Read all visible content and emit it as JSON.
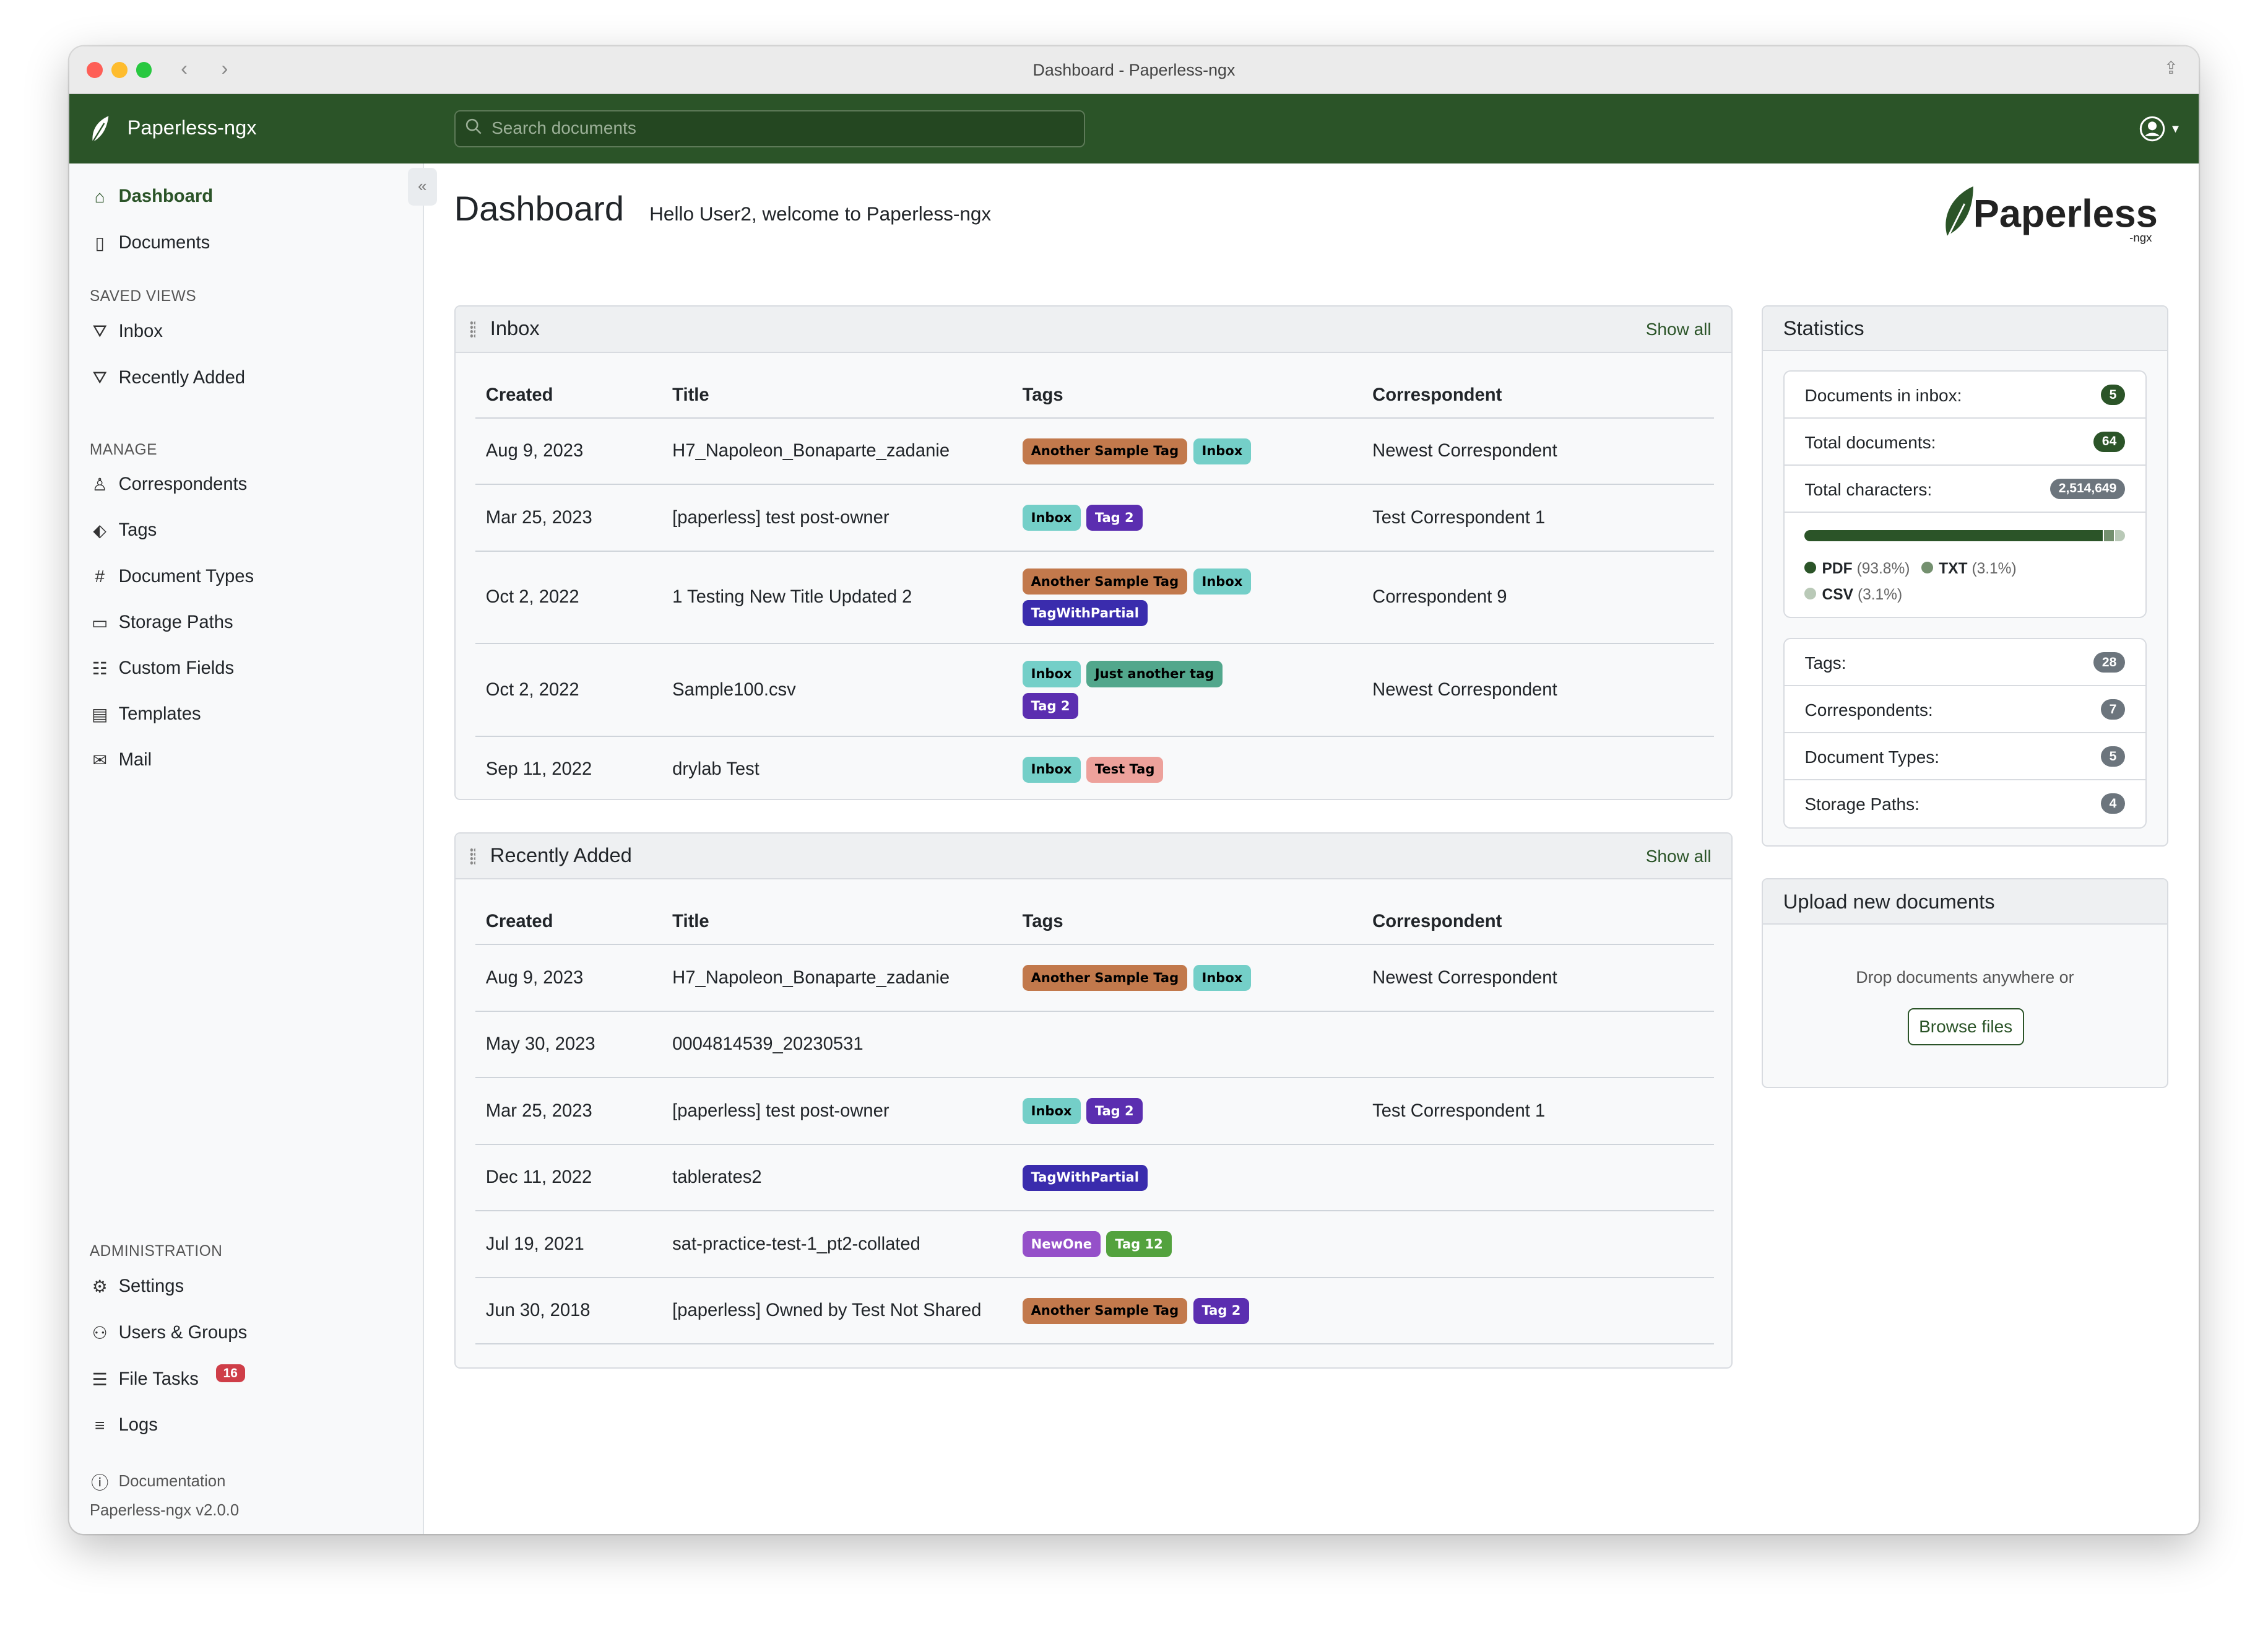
{
  "window": {
    "title": "Dashboard - Paperless-ngx"
  },
  "navbar": {
    "brand": "Paperless-ngx",
    "search_placeholder": "Search documents",
    "color": "#2b5428"
  },
  "sidebar": {
    "items": [
      {
        "label": "Dashboard",
        "icon": "house-icon",
        "active": true
      },
      {
        "label": "Documents",
        "icon": "file-icon"
      }
    ],
    "saved_views_header": "SAVED VIEWS",
    "saved_views": [
      {
        "label": "Inbox",
        "icon": "funnel-icon"
      },
      {
        "label": "Recently Added",
        "icon": "funnel-icon"
      }
    ],
    "manage_header": "MANAGE",
    "manage": [
      {
        "label": "Correspondents",
        "icon": "person-icon"
      },
      {
        "label": "Tags",
        "icon": "tags-icon"
      },
      {
        "label": "Document Types",
        "icon": "hash-icon"
      },
      {
        "label": "Storage Paths",
        "icon": "folder-icon"
      },
      {
        "label": "Custom Fields",
        "icon": "ui-radios-icon"
      },
      {
        "label": "Templates",
        "icon": "file-text-icon"
      },
      {
        "label": "Mail",
        "icon": "envelope-icon"
      }
    ],
    "admin_header": "ADMINISTRATION",
    "admin": [
      {
        "label": "Settings",
        "icon": "gear-icon"
      },
      {
        "label": "Users & Groups",
        "icon": "people-icon"
      },
      {
        "label": "File Tasks",
        "icon": "list-task-icon",
        "badge": "16"
      },
      {
        "label": "Logs",
        "icon": "text-left-icon"
      }
    ],
    "documentation": "Documentation",
    "version": "Paperless-ngx v2.0.0"
  },
  "header": {
    "title": "Dashboard",
    "welcome": "Hello User2, welcome to Paperless-ngx",
    "logo_text": "Paperless",
    "logo_sub": "-ngx"
  },
  "columns": [
    "Created",
    "Title",
    "Tags",
    "Correspondent"
  ],
  "inbox": {
    "title": "Inbox",
    "show_all": "Show all",
    "rows": [
      {
        "created": "Aug 9, 2023",
        "title": "H7_Napoleon_Bonaparte_zadanie",
        "tags": [
          "Another Sample Tag",
          "Inbox"
        ],
        "correspondent": "Newest Correspondent"
      },
      {
        "created": "Mar 25, 2023",
        "title": "[paperless] test post-owner",
        "tags": [
          "Inbox",
          "Tag 2"
        ],
        "correspondent": "Test Correspondent 1"
      },
      {
        "created": "Oct 2, 2022",
        "title": "1 Testing New Title Updated 2",
        "tags": [
          "Another Sample Tag",
          "Inbox",
          "TagWithPartial"
        ],
        "correspondent": "Correspondent 9"
      },
      {
        "created": "Oct 2, 2022",
        "title": "Sample100.csv",
        "tags": [
          "Inbox",
          "Just another tag",
          "Tag 2"
        ],
        "correspondent": "Newest Correspondent"
      },
      {
        "created": "Sep 11, 2022",
        "title": "drylab Test",
        "tags": [
          "Inbox",
          "Test Tag"
        ],
        "correspondent": ""
      }
    ]
  },
  "recent": {
    "title": "Recently Added",
    "show_all": "Show all",
    "rows": [
      {
        "created": "Aug 9, 2023",
        "title": "H7_Napoleon_Bonaparte_zadanie",
        "tags": [
          "Another Sample Tag",
          "Inbox"
        ],
        "correspondent": "Newest Correspondent"
      },
      {
        "created": "May 30, 2023",
        "title": "0004814539_20230531",
        "tags": [],
        "correspondent": ""
      },
      {
        "created": "Mar 25, 2023",
        "title": "[paperless] test post-owner",
        "tags": [
          "Inbox",
          "Tag 2"
        ],
        "correspondent": "Test Correspondent 1"
      },
      {
        "created": "Dec 11, 2022",
        "title": "tablerates2",
        "tags": [
          "TagWithPartial"
        ],
        "correspondent": ""
      },
      {
        "created": "Jul 19, 2021",
        "title": "sat-practice-test-1_pt2-collated",
        "tags": [
          "NewOne",
          "Tag 12"
        ],
        "correspondent": ""
      },
      {
        "created": "Jun 30, 2018",
        "title": "[paperless] Owned by Test Not Shared",
        "tags": [
          "Another Sample Tag",
          "Tag 2"
        ],
        "correspondent": ""
      }
    ]
  },
  "tag_colors": {
    "Another Sample Tag": {
      "bg": "#c2794c",
      "fg": "#000000"
    },
    "Inbox": {
      "bg": "#74cfc8",
      "fg": "#000000"
    },
    "Tag 2": {
      "bg": "#5b2eb0",
      "fg": "#ffffff"
    },
    "TagWithPartial": {
      "bg": "#3a2cad",
      "fg": "#ffffff"
    },
    "Just another tag": {
      "bg": "#52a78c",
      "fg": "#000000"
    },
    "Test Tag": {
      "bg": "#eda19b",
      "fg": "#000000"
    },
    "NewOne": {
      "bg": "#9550c9",
      "fg": "#ffffff"
    },
    "Tag 12": {
      "bg": "#53a23e",
      "fg": "#ffffff"
    }
  },
  "statistics": {
    "title": "Statistics",
    "rows": [
      {
        "label": "Documents in inbox:",
        "value": "5",
        "color": "#2b5428"
      },
      {
        "label": "Total documents:",
        "value": "64",
        "color": "#2b5428"
      },
      {
        "label": "Total characters:",
        "value": "2,514,649",
        "color": "#6c757d"
      }
    ],
    "file_types": [
      {
        "name": "PDF",
        "percent": "(93.8%)",
        "share": 93.8,
        "color": "#2b5428"
      },
      {
        "name": "TXT",
        "percent": "(3.1%)",
        "share": 3.1,
        "color": "#74906f"
      },
      {
        "name": "CSV",
        "percent": "(3.1%)",
        "share": 3.1,
        "color": "#b9c9b7"
      }
    ],
    "counts": [
      {
        "label": "Tags:",
        "value": "28"
      },
      {
        "label": "Correspondents:",
        "value": "7"
      },
      {
        "label": "Document Types:",
        "value": "5"
      },
      {
        "label": "Storage Paths:",
        "value": "4"
      }
    ]
  },
  "upload": {
    "title": "Upload new documents",
    "drop_text": "Drop documents anywhere or",
    "browse": "Browse files"
  }
}
